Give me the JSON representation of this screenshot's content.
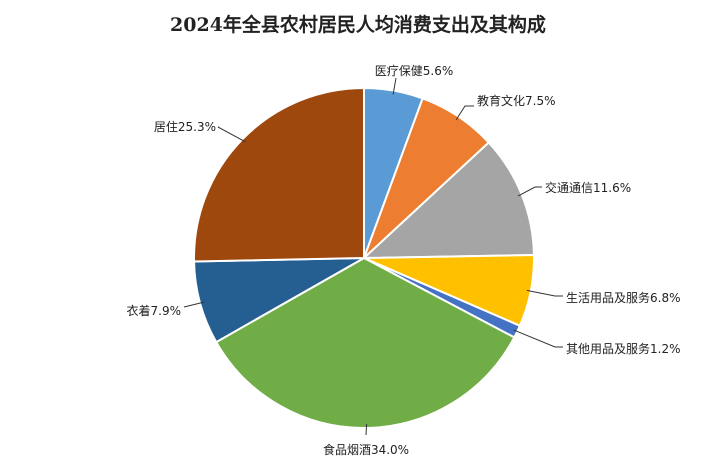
{
  "chart_data": {
    "type": "pie",
    "title": "2024年全县农村居民人均消费支出及其构成",
    "slices": [
      {
        "name": "医疗保健",
        "value": 5.6,
        "label": "医疗保健5.6%",
        "color": "#5B9BD5"
      },
      {
        "name": "教育文化",
        "value": 7.5,
        "label": "教育文化7.5%",
        "color": "#ED7D31"
      },
      {
        "name": "交通通信",
        "value": 11.6,
        "label": "交通通信11.6%",
        "color": "#A5A5A5"
      },
      {
        "name": "生活用品及服务",
        "value": 6.8,
        "label": "生活用品及服务6.8%",
        "color": "#FFC000"
      },
      {
        "name": "其他用品及服务",
        "value": 1.2,
        "label": "其他用品及服务1.2%",
        "color": "#4472C4"
      },
      {
        "name": "食品烟酒",
        "value": 34.0,
        "label": "食品烟酒34.0%",
        "color": "#70AD47"
      },
      {
        "name": "衣着",
        "value": 7.9,
        "label": "衣着7.9%",
        "color": "#255E91"
      },
      {
        "name": "居住",
        "value": 25.3,
        "label": "居住25.3%",
        "color": "#9E480E"
      }
    ]
  }
}
